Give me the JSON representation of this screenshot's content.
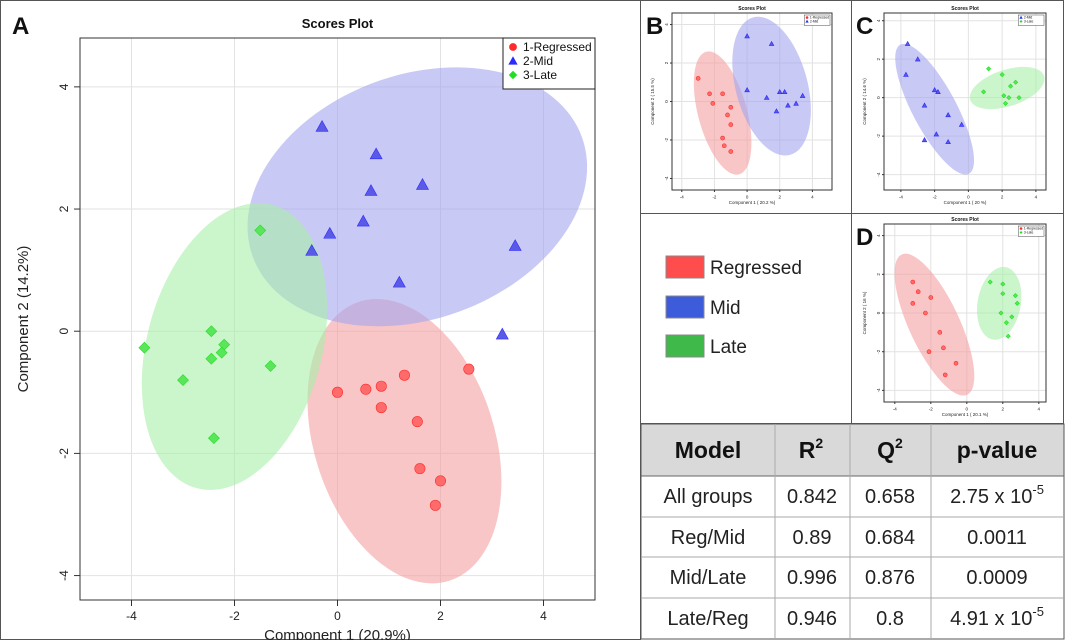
{
  "figure": {
    "panel_letters": {
      "A": "A",
      "B": "B",
      "C": "C",
      "D": "D"
    }
  },
  "chart_data": [
    {
      "panel": "A",
      "type": "scatter",
      "title": "Scores Plot",
      "xlabel": "Component 1 (20.9%)",
      "ylabel": "Component 2 (14.2%)",
      "xlim": [
        -5,
        5
      ],
      "ylim": [
        -4.4,
        4.8
      ],
      "xticks": [
        -4,
        -2,
        0,
        2,
        4
      ],
      "yticks": [
        -4,
        -2,
        0,
        2,
        4
      ],
      "tick_labels_x": [
        "-4",
        "-2",
        "0",
        "2",
        "4"
      ],
      "tick_labels_y": [
        "-4",
        "-2",
        "0",
        "2",
        "4"
      ],
      "legend_position": "top-right",
      "series": [
        {
          "name": "1-Regressed",
          "marker": "circle",
          "color": "#ff2a2a",
          "fill": "#ff6b6b",
          "ellipse": {
            "cx": 1.3,
            "cy": -1.8,
            "rx": 1.75,
            "ry": 2.4,
            "angle": -18,
            "fill": "#f4a0a0"
          },
          "points": [
            [
              0.0,
              -1.0
            ],
            [
              0.55,
              -0.95
            ],
            [
              0.85,
              -0.9
            ],
            [
              1.3,
              -0.72
            ],
            [
              2.55,
              -0.62
            ],
            [
              0.85,
              -1.25
            ],
            [
              1.55,
              -1.48
            ],
            [
              1.6,
              -2.25
            ],
            [
              2.0,
              -2.45
            ],
            [
              1.9,
              -2.85
            ]
          ]
        },
        {
          "name": "2-Mid",
          "marker": "triangle",
          "color": "#2a2aff",
          "fill": "#5a5ae6",
          "ellipse": {
            "cx": 1.55,
            "cy": 2.2,
            "rx": 3.4,
            "ry": 2.0,
            "angle": -20,
            "fill": "#a5a5ee"
          },
          "points": [
            [
              -0.3,
              3.35
            ],
            [
              0.75,
              2.9
            ],
            [
              1.65,
              2.4
            ],
            [
              0.65,
              2.3
            ],
            [
              0.5,
              1.8
            ],
            [
              -0.15,
              1.6
            ],
            [
              -0.5,
              1.32
            ],
            [
              3.45,
              1.4
            ],
            [
              1.2,
              0.8
            ],
            [
              3.2,
              -0.05
            ]
          ]
        },
        {
          "name": "3-Late",
          "marker": "diamond",
          "color": "#22dd22",
          "fill": "#5ae65a",
          "ellipse": {
            "cx": -2.0,
            "cy": -0.25,
            "rx": 1.7,
            "ry": 2.4,
            "angle": 15,
            "fill": "#a8eea8"
          },
          "points": [
            [
              -1.5,
              1.65
            ],
            [
              -2.45,
              0.0
            ],
            [
              -3.75,
              -0.27
            ],
            [
              -2.2,
              -0.22
            ],
            [
              -2.25,
              -0.35
            ],
            [
              -2.45,
              -0.45
            ],
            [
              -1.3,
              -0.57
            ],
            [
              -3.0,
              -0.8
            ],
            [
              -2.4,
              -1.75
            ]
          ]
        }
      ]
    },
    {
      "panel": "B",
      "type": "scatter",
      "title": "Scores Plot",
      "xlabel": "Component 1 ( 20.2 %)",
      "ylabel": "Component 2 ( 15.5 %)",
      "xlim": [
        -4.6,
        5.2
      ],
      "ylim": [
        -4.6,
        4.6
      ],
      "xticks": [
        -4,
        -2,
        0,
        2,
        4
      ],
      "yticks": [
        -4,
        -2,
        0,
        2,
        4
      ],
      "tick_labels_x": [
        "-4",
        "-2",
        "0",
        "2",
        "4"
      ],
      "tick_labels_y": [
        "-4",
        "-2",
        "0",
        "2",
        "4"
      ],
      "legend_position": "top-right",
      "series": [
        {
          "name": "1-Regressed",
          "marker": "circle",
          "color": "#ff2a2a",
          "fill": "#ff6b6b",
          "ellipse": {
            "cx": -1.5,
            "cy": -0.6,
            "rx": 1.5,
            "ry": 3.3,
            "angle": -15,
            "fill": "#f4a0a0"
          },
          "points": [
            [
              -3.0,
              1.2
            ],
            [
              -2.3,
              0.4
            ],
            [
              -1.5,
              0.4
            ],
            [
              -1.0,
              -0.3
            ],
            [
              -1.2,
              -0.7
            ],
            [
              -2.1,
              -0.1
            ],
            [
              -1.0,
              -1.2
            ],
            [
              -1.5,
              -1.9
            ],
            [
              -1.4,
              -2.3
            ],
            [
              -1.0,
              -2.6
            ]
          ]
        },
        {
          "name": "2-Mid",
          "marker": "triangle",
          "color": "#2a2aff",
          "fill": "#5a5ae6",
          "ellipse": {
            "cx": 1.5,
            "cy": 0.8,
            "rx": 2.2,
            "ry": 3.7,
            "angle": -15,
            "fill": "#a5a5ee"
          },
          "points": [
            [
              0.0,
              3.4
            ],
            [
              1.5,
              3.0
            ],
            [
              0.0,
              0.6
            ],
            [
              1.2,
              0.2
            ],
            [
              2.0,
              0.5
            ],
            [
              2.3,
              0.5
            ],
            [
              3.0,
              -0.1
            ],
            [
              3.4,
              0.3
            ],
            [
              1.8,
              -0.5
            ],
            [
              2.5,
              -0.2
            ]
          ]
        }
      ]
    },
    {
      "panel": "C",
      "type": "scatter",
      "title": "Scores Plot",
      "xlabel": "Component 1 ( 20 %)",
      "ylabel": "Component 2 ( 14.6 %)",
      "xlim": [
        -5.0,
        4.6
      ],
      "ylim": [
        -4.8,
        4.4
      ],
      "xticks": [
        -4,
        -2,
        0,
        2,
        4
      ],
      "yticks": [
        -4,
        -2,
        0,
        2,
        4
      ],
      "tick_labels_x": [
        "-4",
        "-2",
        "0",
        "2",
        "4"
      ],
      "tick_labels_y": [
        "-4",
        "-2",
        "0",
        "2",
        "4"
      ],
      "legend_position": "top-right",
      "series": [
        {
          "name": "2-Mid",
          "marker": "triangle",
          "color": "#2a2aff",
          "fill": "#5a5ae6",
          "ellipse": {
            "cx": -2.0,
            "cy": -0.6,
            "rx": 1.3,
            "ry": 3.8,
            "angle": -28,
            "fill": "#a5a5ee"
          },
          "points": [
            [
              -3.6,
              2.8
            ],
            [
              -3.0,
              2.0
            ],
            [
              -3.7,
              1.2
            ],
            [
              -2.0,
              0.4
            ],
            [
              -1.8,
              0.3
            ],
            [
              -2.6,
              -0.4
            ],
            [
              -1.2,
              -0.9
            ],
            [
              -0.4,
              -1.4
            ],
            [
              -2.6,
              -2.2
            ],
            [
              -1.9,
              -1.9
            ],
            [
              -1.2,
              -2.3
            ]
          ]
        },
        {
          "name": "3-Late",
          "marker": "diamond",
          "color": "#22dd22",
          "fill": "#5ae65a",
          "ellipse": {
            "cx": 2.3,
            "cy": 0.5,
            "rx": 2.3,
            "ry": 0.95,
            "angle": -18,
            "fill": "#a8eea8"
          },
          "points": [
            [
              1.2,
              1.5
            ],
            [
              2.0,
              1.2
            ],
            [
              0.9,
              0.3
            ],
            [
              2.1,
              0.1
            ],
            [
              2.5,
              0.6
            ],
            [
              2.4,
              0.0
            ],
            [
              3.0,
              0.0
            ],
            [
              2.8,
              0.8
            ],
            [
              2.2,
              -0.3
            ]
          ]
        }
      ]
    },
    {
      "panel": "D",
      "type": "scatter",
      "title": "Scores Plot",
      "xlabel": "Component 1 ( 20.1 %)",
      "ylabel": "Component 2 ( 16 %)",
      "xlim": [
        -4.6,
        4.4
      ],
      "ylim": [
        -4.6,
        4.6
      ],
      "xticks": [
        -4,
        -2,
        0,
        2,
        4
      ],
      "yticks": [
        -4,
        -2,
        0,
        2,
        4
      ],
      "tick_labels_x": [
        "-4",
        "-2",
        "0",
        "2",
        "4"
      ],
      "tick_labels_y": [
        "-4",
        "-2",
        "0",
        "2",
        "4"
      ],
      "legend_position": "top-right",
      "series": [
        {
          "name": "1-Regressed",
          "marker": "circle",
          "color": "#ff2a2a",
          "fill": "#ff6b6b",
          "ellipse": {
            "cx": -1.8,
            "cy": -0.6,
            "rx": 1.4,
            "ry": 4.0,
            "angle": -25,
            "fill": "#f4a0a0"
          },
          "points": [
            [
              -3.0,
              1.6
            ],
            [
              -2.7,
              1.1
            ],
            [
              -2.0,
              0.8
            ],
            [
              -3.0,
              0.5
            ],
            [
              -2.3,
              0.0
            ],
            [
              -1.5,
              -1.0
            ],
            [
              -1.3,
              -1.8
            ],
            [
              -2.1,
              -2.0
            ],
            [
              -0.6,
              -2.6
            ],
            [
              -1.2,
              -3.2
            ]
          ]
        },
        {
          "name": "3-Late",
          "marker": "diamond",
          "color": "#22dd22",
          "fill": "#5ae65a",
          "ellipse": {
            "cx": 1.8,
            "cy": 0.5,
            "rx": 1.2,
            "ry": 1.9,
            "angle": 10,
            "fill": "#a8eea8"
          },
          "points": [
            [
              1.3,
              1.6
            ],
            [
              2.0,
              1.5
            ],
            [
              2.0,
              1.0
            ],
            [
              2.8,
              0.5
            ],
            [
              1.9,
              0.0
            ],
            [
              2.5,
              -0.2
            ],
            [
              2.2,
              -0.5
            ],
            [
              2.7,
              0.9
            ],
            [
              2.3,
              -1.2
            ]
          ]
        }
      ]
    }
  ],
  "color_legend": [
    {
      "label": "Regressed",
      "color": "#ff4d4d"
    },
    {
      "label": "Mid",
      "color": "#3d5cdb"
    },
    {
      "label": "Late",
      "color": "#3fb94a"
    }
  ],
  "table": {
    "headers": [
      "Model",
      "R2",
      "Q2",
      "p-value"
    ],
    "rows": [
      [
        "All groups",
        "0.842",
        "0.658",
        "2.75 x 10-5"
      ],
      [
        "Reg/Mid",
        "0.89",
        "0.684",
        "0.0011"
      ],
      [
        "Mid/Late",
        "0.996",
        "0.876",
        "0.0009"
      ],
      [
        "Late/Reg",
        "0.946",
        "0.8",
        "4.91 x 10-5"
      ]
    ]
  }
}
